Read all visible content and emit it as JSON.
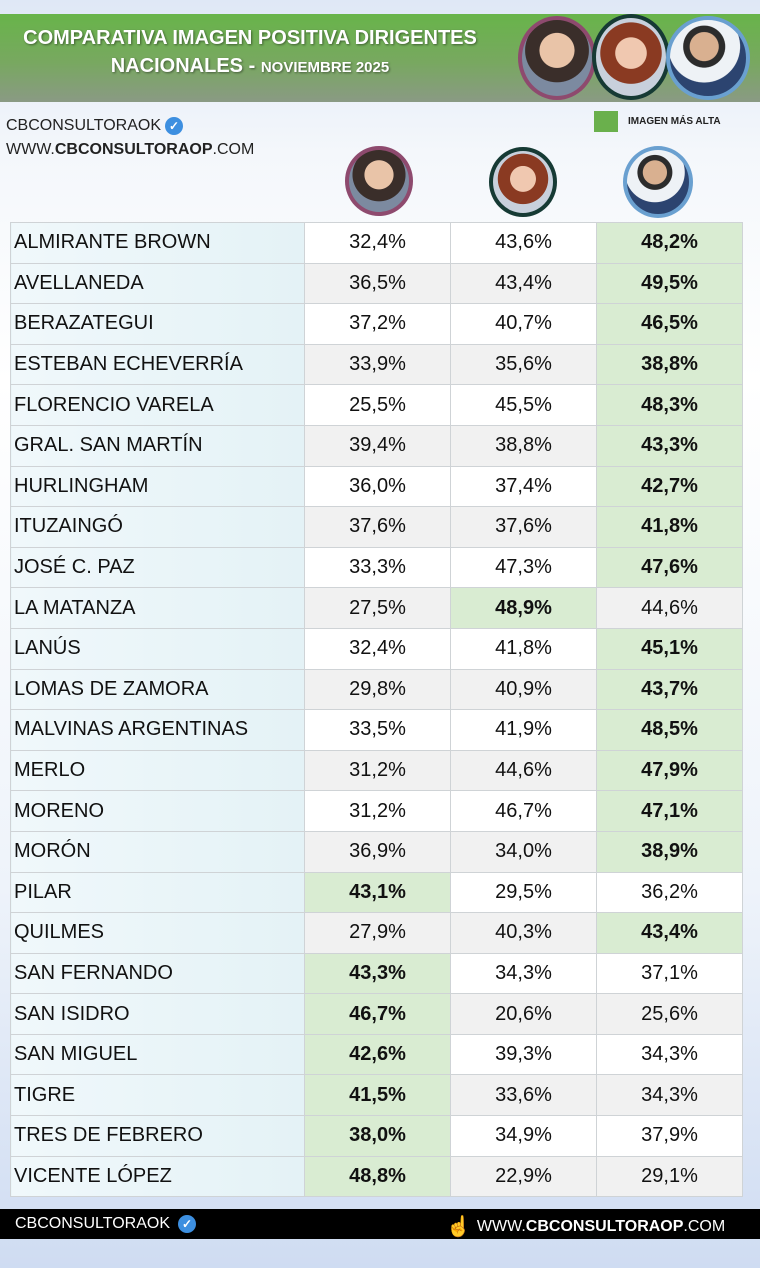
{
  "header": {
    "title_line1": "COMPARATIVA IMAGEN POSITIVA DIRIGENTES",
    "title_line2": "NACIONALES -",
    "title_date": "NOVIEMBRE 2025"
  },
  "brand": {
    "handle": "CBCONSULTORAOK",
    "site_prefix": "WWW.",
    "site_main": "CBCONSULTORAOP",
    "site_suffix": ".COM"
  },
  "legend": {
    "label": "IMAGEN MÁS ALTA",
    "color": "#6ab04c"
  },
  "colors": {
    "highlight": "#d9ecd2",
    "portrait_borders": [
      "#8e4a6e",
      "#163a34",
      "#6aa0d0"
    ]
  },
  "chart_data": {
    "type": "table",
    "columns": [
      "",
      "",
      "",
      ""
    ],
    "rows": [
      {
        "name": "ALMIRANTE BROWN",
        "values": [
          "32,4%",
          "43,6%",
          "48,2%"
        ],
        "highlight": 2
      },
      {
        "name": "AVELLANEDA",
        "values": [
          "36,5%",
          "43,4%",
          "49,5%"
        ],
        "highlight": 2
      },
      {
        "name": "BERAZATEGUI",
        "values": [
          "37,2%",
          "40,7%",
          "46,5%"
        ],
        "highlight": 2
      },
      {
        "name": "ESTEBAN ECHEVERRÍA",
        "values": [
          "33,9%",
          "35,6%",
          "38,8%"
        ],
        "highlight": 2
      },
      {
        "name": "FLORENCIO VARELA",
        "values": [
          "25,5%",
          "45,5%",
          "48,3%"
        ],
        "highlight": 2
      },
      {
        "name": "GRAL. SAN MARTÍN",
        "values": [
          "39,4%",
          "38,8%",
          "43,3%"
        ],
        "highlight": 2
      },
      {
        "name": "HURLINGHAM",
        "values": [
          "36,0%",
          "37,4%",
          "42,7%"
        ],
        "highlight": 2
      },
      {
        "name": "ITUZAINGÓ",
        "values": [
          "37,6%",
          "37,6%",
          "41,8%"
        ],
        "highlight": 2
      },
      {
        "name": "JOSÉ C. PAZ",
        "values": [
          "33,3%",
          "47,3%",
          "47,6%"
        ],
        "highlight": 2
      },
      {
        "name": "LA MATANZA",
        "values": [
          "27,5%",
          "48,9%",
          "44,6%"
        ],
        "highlight": 1
      },
      {
        "name": "LANÚS",
        "values": [
          "32,4%",
          "41,8%",
          "45,1%"
        ],
        "highlight": 2
      },
      {
        "name": "LOMAS DE ZAMORA",
        "values": [
          "29,8%",
          "40,9%",
          "43,7%"
        ],
        "highlight": 2
      },
      {
        "name": "MALVINAS ARGENTINAS",
        "values": [
          "33,5%",
          "41,9%",
          "48,5%"
        ],
        "highlight": 2
      },
      {
        "name": "MERLO",
        "values": [
          "31,2%",
          "44,6%",
          "47,9%"
        ],
        "highlight": 2
      },
      {
        "name": "MORENO",
        "values": [
          "31,2%",
          "46,7%",
          "47,1%"
        ],
        "highlight": 2
      },
      {
        "name": "MORÓN",
        "values": [
          "36,9%",
          "34,0%",
          "38,9%"
        ],
        "highlight": 2
      },
      {
        "name": "PILAR",
        "values": [
          "43,1%",
          "29,5%",
          "36,2%"
        ],
        "highlight": 0
      },
      {
        "name": "QUILMES",
        "values": [
          "27,9%",
          "40,3%",
          "43,4%"
        ],
        "highlight": 2
      },
      {
        "name": "SAN FERNANDO",
        "values": [
          "43,3%",
          "34,3%",
          "37,1%"
        ],
        "highlight": 0
      },
      {
        "name": "SAN ISIDRO",
        "values": [
          "46,7%",
          "20,6%",
          "25,6%"
        ],
        "highlight": 0
      },
      {
        "name": "SAN MIGUEL",
        "values": [
          "42,6%",
          "39,3%",
          "34,3%"
        ],
        "highlight": 0
      },
      {
        "name": "TIGRE",
        "values": [
          "41,5%",
          "33,6%",
          "34,3%"
        ],
        "highlight": 0
      },
      {
        "name": "TRES DE FEBRERO",
        "values": [
          "38,0%",
          "34,9%",
          "37,9%"
        ],
        "highlight": 0
      },
      {
        "name": "VICENTE LÓPEZ",
        "values": [
          "48,8%",
          "22,9%",
          "29,1%"
        ],
        "highlight": 0
      }
    ]
  }
}
